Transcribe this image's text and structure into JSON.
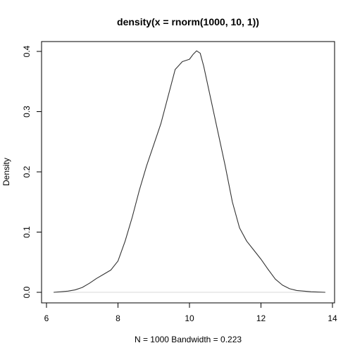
{
  "chart_data": {
    "type": "line",
    "title": "density(x = rnorm(1000, 10, 1))",
    "xlabel": "N = 1000   Bandwidth = 0.223",
    "ylabel": "Density",
    "xlim": [
      6.0,
      14.0
    ],
    "ylim": [
      0.0,
      0.4
    ],
    "x_ticks": [
      6,
      8,
      10,
      12,
      14
    ],
    "y_ticks": [
      0.0,
      0.1,
      0.2,
      0.3,
      0.4
    ],
    "x_tick_labels": [
      "6",
      "8",
      "10",
      "12",
      "14"
    ],
    "y_tick_labels": [
      "0.0",
      "0.1",
      "0.2",
      "0.3",
      "0.4"
    ],
    "grid": false,
    "baseline": 0,
    "colors": {
      "line": "#333333",
      "baseline": "#d8d8d8",
      "axes": "#000000"
    },
    "series": [
      {
        "x": [
          6.2,
          6.6,
          6.8,
          7.0,
          7.2,
          7.4,
          7.6,
          7.8,
          8.0,
          8.2,
          8.4,
          8.6,
          8.8,
          9.0,
          9.2,
          9.4,
          9.6,
          9.8,
          10.0,
          10.1,
          10.2,
          10.3,
          10.4,
          10.6,
          10.8,
          11.0,
          11.2,
          11.4,
          11.6,
          11.8,
          12.0,
          12.2,
          12.4,
          12.6,
          12.8,
          13.0,
          13.4,
          13.8
        ],
        "y": [
          0.0,
          0.002,
          0.004,
          0.008,
          0.015,
          0.023,
          0.03,
          0.037,
          0.052,
          0.085,
          0.125,
          0.17,
          0.21,
          0.245,
          0.28,
          0.325,
          0.37,
          0.383,
          0.387,
          0.395,
          0.401,
          0.397,
          0.375,
          0.32,
          0.265,
          0.21,
          0.15,
          0.107,
          0.085,
          0.07,
          0.055,
          0.038,
          0.022,
          0.012,
          0.006,
          0.003,
          0.001,
          0.0
        ]
      }
    ]
  }
}
